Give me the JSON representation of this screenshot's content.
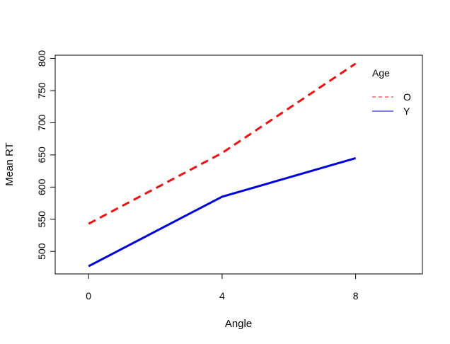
{
  "chart_data": {
    "type": "line",
    "x": [
      0,
      4,
      8
    ],
    "xticks": [
      0,
      4,
      8
    ],
    "xlim": [
      -1,
      10
    ],
    "ylim": [
      465,
      805
    ],
    "yticks": [
      500,
      550,
      600,
      650,
      700,
      750,
      800
    ],
    "xlabel": "Angle",
    "ylabel": "Mean RT",
    "grid": false,
    "legend": {
      "title": "Age",
      "position": "top-right",
      "entries": [
        "O",
        "Y"
      ]
    },
    "series": [
      {
        "name": "O",
        "values": [
          543,
          653,
          792
        ],
        "color": "#ee1111",
        "style": "dashed"
      },
      {
        "name": "Y",
        "values": [
          477,
          585,
          645
        ],
        "color": "#0000dd",
        "style": "solid"
      }
    ]
  }
}
